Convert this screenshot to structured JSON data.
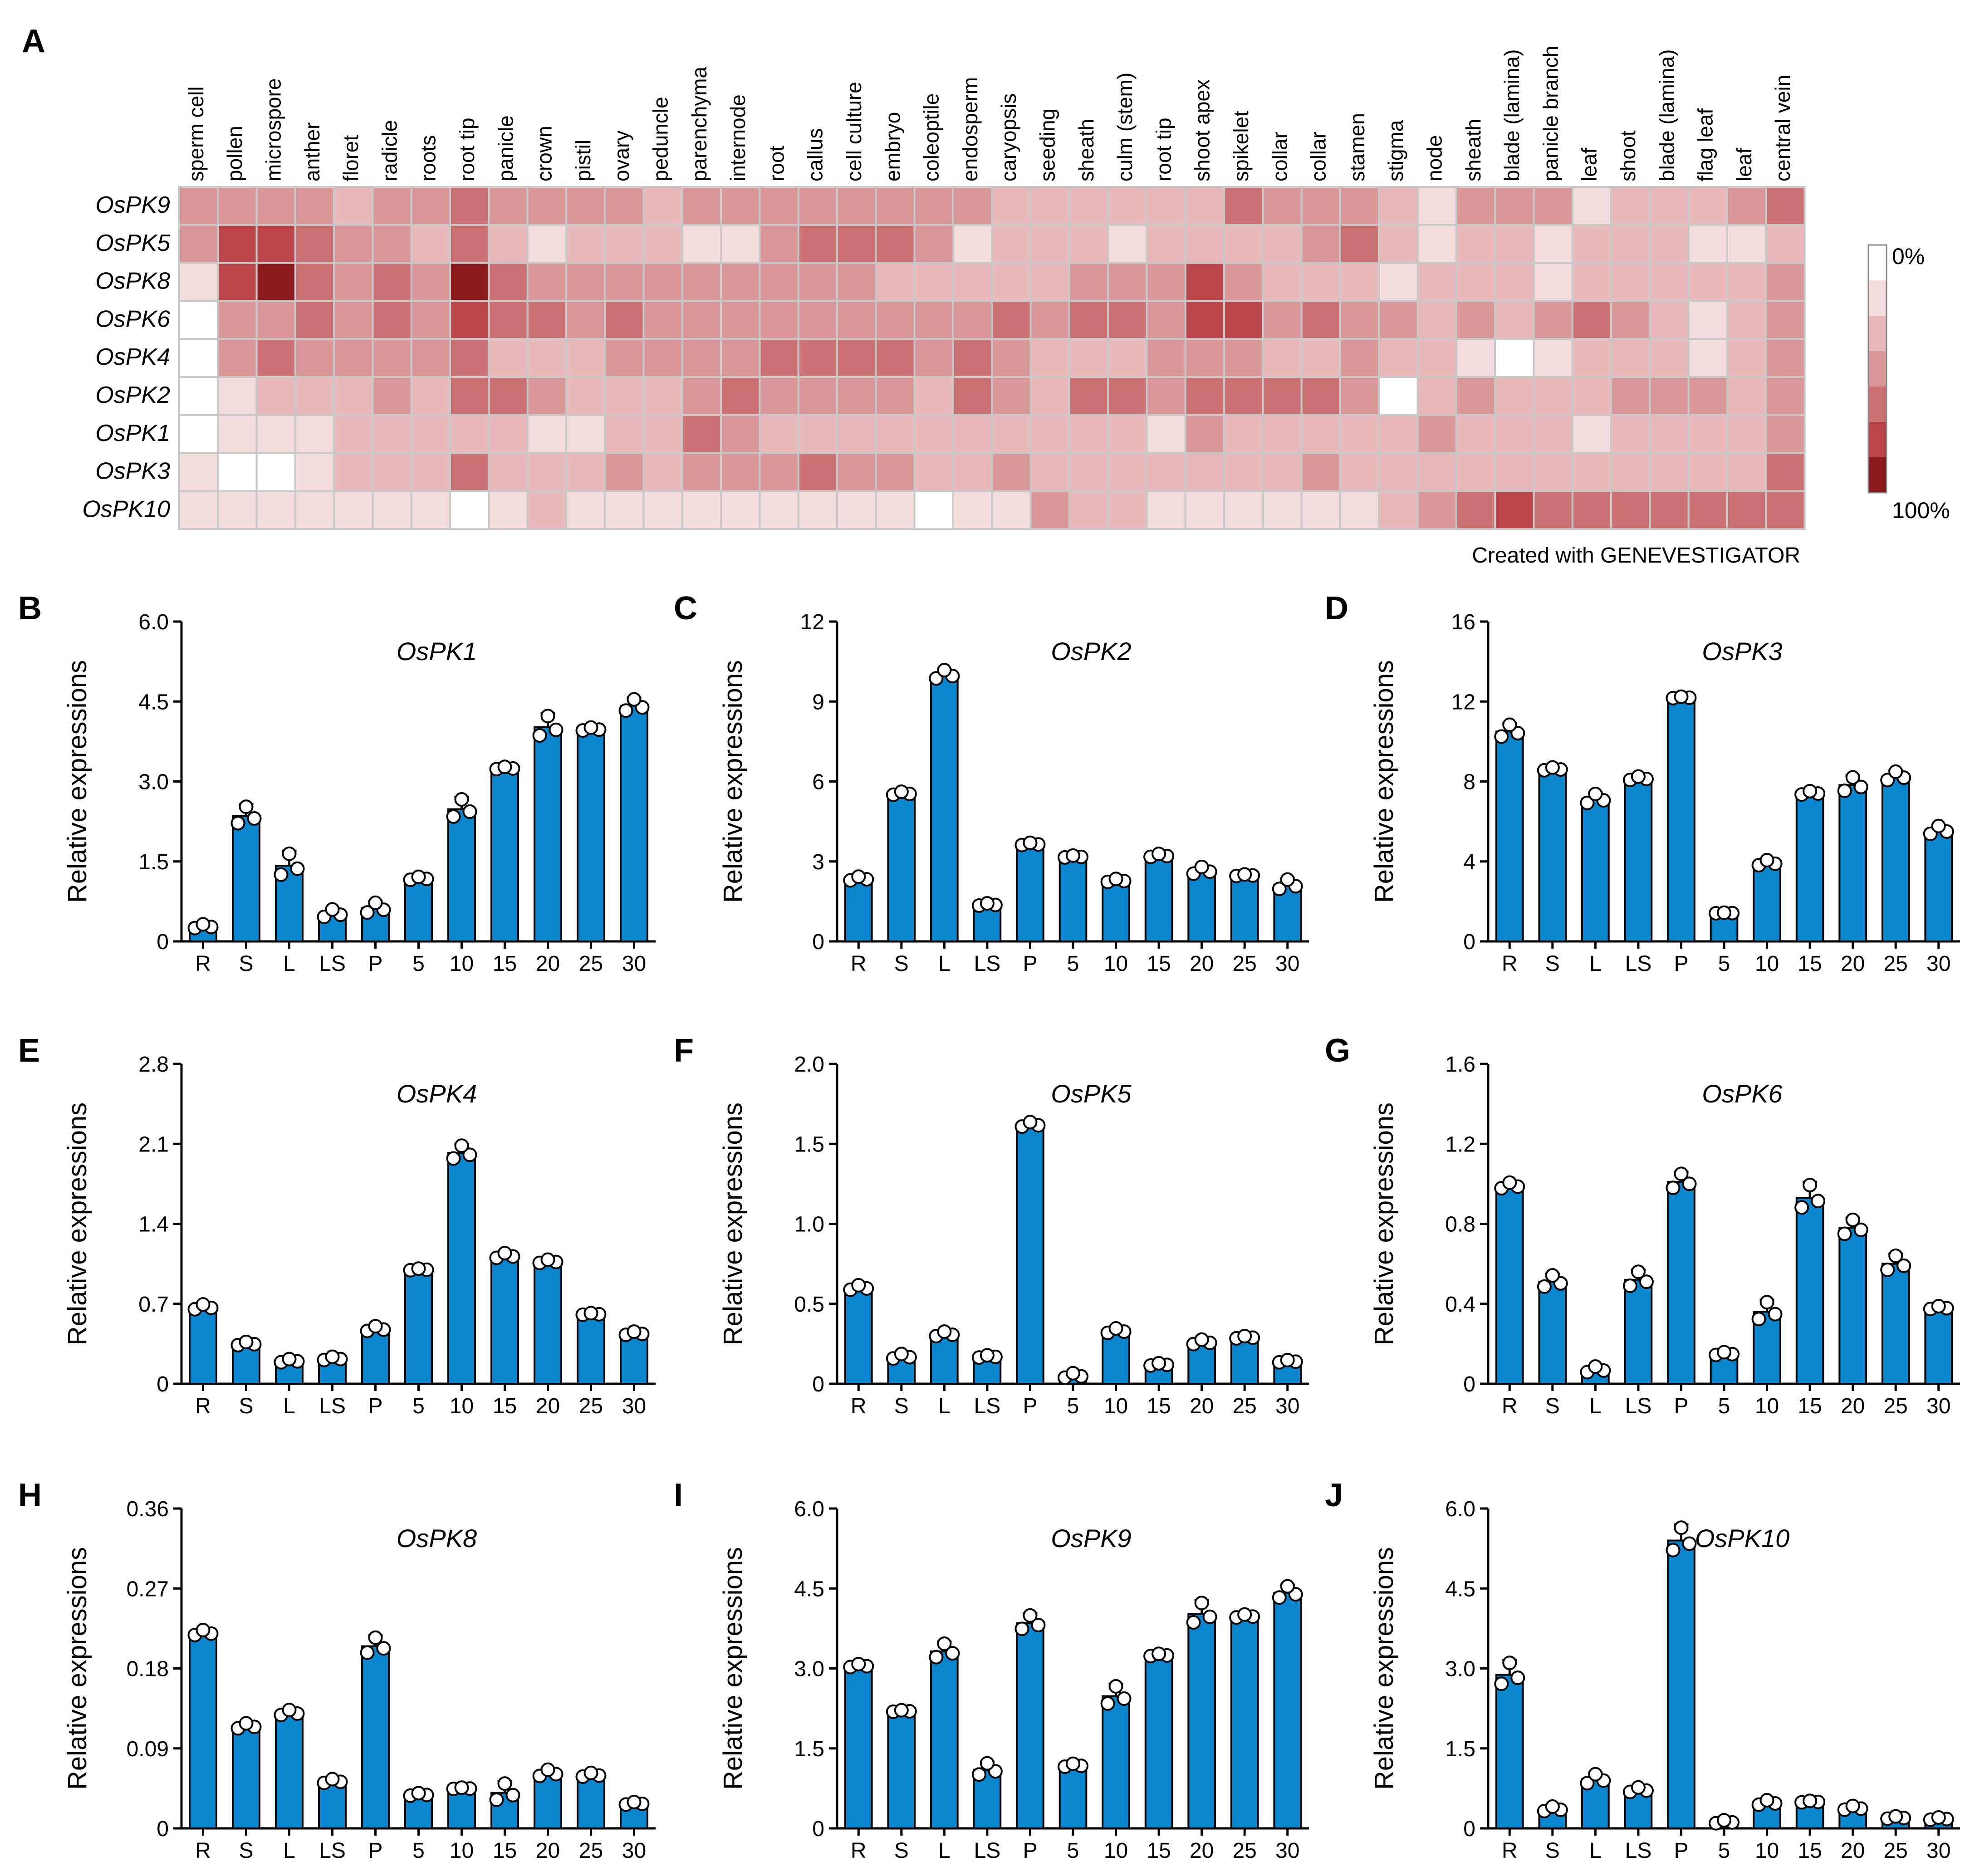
{
  "colors": {
    "bar": "#0a86cf",
    "bar_stroke": "#000000",
    "heat_low": "#ffffff",
    "heat_high": "#8b1a1f",
    "grid": "#c8c8c8"
  },
  "heatmap": {
    "panel_label": "A",
    "genes": [
      "OsPK9",
      "OsPK5",
      "OsPK8",
      "OsPK6",
      "OsPK4",
      "OsPK2",
      "OsPK1",
      "OsPK3",
      "OsPK10"
    ],
    "tissues": [
      "sperm cell",
      "pollen",
      "microspore",
      "anther",
      "floret",
      "radicle",
      "roots",
      "root tip",
      "panicle",
      "crown",
      "pistil",
      "ovary",
      "peduncle",
      "parenchyma",
      "internode",
      "root",
      "callus",
      "cell culture",
      "embryo",
      "coleoptile",
      "endosperm",
      "caryopsis",
      "seeding",
      "sheath",
      "culm (stem)",
      "root tip",
      "shoot apex",
      "spikelet",
      "collar",
      "collar",
      "stamen",
      "stigma",
      "node",
      "sheath",
      "blade (lamina)",
      "panicle branch",
      "leaf",
      "shoot",
      "blade (lamina)",
      "flag leaf",
      "leaf",
      "central vein"
    ],
    "levels": [
      [
        3,
        3,
        3,
        3,
        2,
        3,
        3,
        4,
        3,
        3,
        3,
        3,
        2,
        3,
        3,
        3,
        3,
        3,
        3,
        3,
        3,
        2,
        2,
        2,
        2,
        2,
        2,
        4,
        3,
        3,
        3,
        2,
        1,
        3,
        3,
        3,
        1,
        2,
        2,
        2,
        3,
        4
      ],
      [
        3,
        5,
        5,
        4,
        3,
        3,
        2,
        4,
        2,
        1,
        2,
        2,
        2,
        1,
        1,
        3,
        4,
        4,
        4,
        3,
        1,
        2,
        2,
        2,
        1,
        2,
        2,
        2,
        2,
        3,
        4,
        2,
        1,
        2,
        2,
        1,
        2,
        2,
        2,
        1,
        1,
        2
      ],
      [
        1,
        5,
        6,
        4,
        3,
        4,
        3,
        6,
        4,
        3,
        3,
        3,
        3,
        3,
        3,
        3,
        3,
        3,
        2,
        2,
        2,
        2,
        2,
        3,
        3,
        3,
        5,
        3,
        2,
        2,
        2,
        1,
        2,
        2,
        2,
        1,
        2,
        2,
        2,
        2,
        2,
        3
      ],
      [
        0,
        3,
        3,
        4,
        3,
        4,
        3,
        5,
        4,
        4,
        3,
        4,
        3,
        3,
        3,
        3,
        3,
        3,
        3,
        3,
        3,
        4,
        3,
        4,
        4,
        3,
        5,
        5,
        3,
        4,
        3,
        3,
        2,
        3,
        2,
        3,
        4,
        3,
        2,
        1,
        2,
        3
      ],
      [
        0,
        3,
        4,
        3,
        3,
        3,
        3,
        4,
        2,
        2,
        2,
        3,
        3,
        3,
        3,
        4,
        4,
        4,
        4,
        3,
        4,
        3,
        2,
        2,
        2,
        3,
        3,
        3,
        2,
        2,
        3,
        2,
        2,
        1,
        0,
        1,
        2,
        2,
        2,
        1,
        2,
        3
      ],
      [
        0,
        1,
        2,
        2,
        2,
        3,
        2,
        4,
        4,
        3,
        2,
        2,
        2,
        3,
        4,
        3,
        3,
        3,
        3,
        2,
        4,
        3,
        2,
        4,
        4,
        3,
        4,
        4,
        4,
        4,
        3,
        0,
        2,
        3,
        2,
        2,
        2,
        3,
        3,
        3,
        2,
        3
      ],
      [
        0,
        1,
        1,
        1,
        2,
        2,
        2,
        2,
        2,
        1,
        1,
        2,
        2,
        4,
        3,
        2,
        2,
        2,
        2,
        2,
        2,
        2,
        2,
        2,
        2,
        1,
        3,
        2,
        2,
        2,
        2,
        2,
        3,
        2,
        2,
        2,
        1,
        2,
        2,
        2,
        2,
        3
      ],
      [
        1,
        0,
        0,
        1,
        2,
        2,
        2,
        4,
        2,
        2,
        2,
        3,
        2,
        3,
        3,
        3,
        4,
        3,
        3,
        2,
        2,
        3,
        2,
        2,
        2,
        2,
        2,
        2,
        2,
        3,
        2,
        2,
        2,
        2,
        2,
        2,
        2,
        2,
        2,
        2,
        2,
        4
      ],
      [
        1,
        1,
        1,
        1,
        1,
        1,
        1,
        0,
        1,
        2,
        1,
        1,
        1,
        1,
        1,
        1,
        1,
        1,
        1,
        0,
        1,
        1,
        3,
        2,
        2,
        1,
        1,
        1,
        1,
        1,
        1,
        2,
        3,
        4,
        5,
        4,
        4,
        4,
        4,
        4,
        4,
        4
      ]
    ],
    "legend_min": "0%",
    "legend_max": "100%",
    "credit": "Created with GENEVESTIGATOR"
  },
  "chart_data": [
    {
      "panel": "B",
      "type": "bar",
      "title": "OsPK1",
      "ylabel": "Relative expressions",
      "ylim": [
        0,
        6.0
      ],
      "ytick_labels": [
        "0",
        "1.5",
        "3.0",
        "4.5",
        "6.0"
      ],
      "categories": [
        "R",
        "S",
        "L",
        "LS",
        "P",
        "5",
        "10",
        "15",
        "20",
        "25",
        "30"
      ],
      "values": [
        0.28,
        2.35,
        1.42,
        0.52,
        0.62,
        1.18,
        2.48,
        3.25,
        4.02,
        3.98,
        4.42
      ],
      "errors": [
        0.05,
        0.22,
        0.28,
        0.1,
        0.13,
        0.04,
        0.23,
        0.03,
        0.26,
        0.04,
        0.15
      ]
    },
    {
      "panel": "C",
      "type": "bar",
      "title": "OsPK2",
      "ylabel": "Relative expressions",
      "ylim": [
        0,
        12
      ],
      "ytick_labels": [
        "0",
        "3",
        "6",
        "9",
        "12"
      ],
      "categories": [
        "R",
        "S",
        "L",
        "LS",
        "P",
        "5",
        "10",
        "15",
        "20",
        "25",
        "30"
      ],
      "values": [
        2.35,
        5.55,
        10.0,
        1.38,
        3.65,
        3.18,
        2.28,
        3.22,
        2.65,
        2.48,
        2.12
      ],
      "errors": [
        0.1,
        0.08,
        0.22,
        0.06,
        0.06,
        0.05,
        0.08,
        0.08,
        0.18,
        0.04,
        0.25
      ]
    },
    {
      "panel": "D",
      "type": "bar",
      "title": "OsPK3",
      "ylabel": "Relative expressions",
      "ylim": [
        0,
        16
      ],
      "ytick_labels": [
        "0",
        "4",
        "8",
        "12",
        "16"
      ],
      "categories": [
        "R",
        "S",
        "L",
        "LS",
        "P",
        "5",
        "10",
        "15",
        "20",
        "25",
        "30"
      ],
      "values": [
        10.5,
        8.62,
        7.12,
        8.15,
        12.2,
        1.42,
        3.92,
        7.42,
        7.82,
        8.25,
        5.55
      ],
      "errors": [
        0.42,
        0.1,
        0.32,
        0.12,
        0.05,
        0.02,
        0.18,
        0.12,
        0.48,
        0.3,
        0.28
      ]
    },
    {
      "panel": "E",
      "type": "bar",
      "title": "OsPK4",
      "ylabel": "Relative expressions",
      "ylim": [
        0,
        2.8
      ],
      "ytick_labels": [
        "0",
        "0.7",
        "1.4",
        "2.1",
        "2.8"
      ],
      "categories": [
        "R",
        "S",
        "L",
        "LS",
        "P",
        "5",
        "10",
        "15",
        "20",
        "25",
        "30"
      ],
      "values": [
        0.67,
        0.35,
        0.2,
        0.22,
        0.48,
        1.0,
        2.02,
        1.12,
        1.07,
        0.61,
        0.44
      ],
      "errors": [
        0.03,
        0.02,
        0.02,
        0.02,
        0.03,
        0.01,
        0.08,
        0.03,
        0.02,
        0.01,
        0.02
      ]
    },
    {
      "panel": "F",
      "type": "bar",
      "title": "OsPK5",
      "ylabel": "Relative expressions",
      "ylim": [
        0,
        2.0
      ],
      "ytick_labels": [
        "0",
        "0.5",
        "1.0",
        "1.5",
        "2.0"
      ],
      "categories": [
        "R",
        "S",
        "L",
        "LS",
        "P",
        "5",
        "10",
        "15",
        "20",
        "25",
        "30"
      ],
      "values": [
        0.6,
        0.17,
        0.31,
        0.17,
        1.62,
        0.05,
        0.33,
        0.12,
        0.26,
        0.29,
        0.14
      ],
      "errors": [
        0.02,
        0.02,
        0.02,
        0.01,
        0.02,
        0.02,
        0.02,
        0.01,
        0.02,
        0.01,
        0.01
      ]
    },
    {
      "panel": "G",
      "type": "bar",
      "title": "OsPK6",
      "ylabel": "Relative expressions",
      "ylim": [
        0,
        1.6
      ],
      "ytick_labels": [
        "0",
        "0.4",
        "0.8",
        "1.2",
        "1.6"
      ],
      "categories": [
        "R",
        "S",
        "L",
        "LS",
        "P",
        "5",
        "10",
        "15",
        "20",
        "25",
        "30"
      ],
      "values": [
        0.99,
        0.51,
        0.07,
        0.52,
        1.01,
        0.15,
        0.36,
        0.93,
        0.78,
        0.6,
        0.38
      ],
      "errors": [
        0.02,
        0.04,
        0.02,
        0.05,
        0.05,
        0.01,
        0.06,
        0.08,
        0.05,
        0.05,
        0.01
      ]
    },
    {
      "panel": "H",
      "type": "bar",
      "title": "OsPK8",
      "ylabel": "Relative expressions",
      "ylim": [
        0,
        0.36
      ],
      "ytick_labels": [
        "0",
        "0.09",
        "0.18",
        "0.27",
        "0.36"
      ],
      "categories": [
        "R",
        "S",
        "L",
        "LS",
        "P",
        "5",
        "10",
        "15",
        "20",
        "25",
        "30"
      ],
      "values": [
        0.22,
        0.115,
        0.13,
        0.053,
        0.205,
        0.038,
        0.045,
        0.04,
        0.062,
        0.06,
        0.028
      ],
      "errors": [
        0.004,
        0.004,
        0.004,
        0.003,
        0.012,
        0.002,
        0.001,
        0.013,
        0.005,
        0.003,
        0.002
      ]
    },
    {
      "panel": "I",
      "type": "bar",
      "title": "OsPK9",
      "ylabel": "Relative expressions",
      "ylim": [
        0,
        6.0
      ],
      "ytick_labels": [
        "0",
        "1.5",
        "3.0",
        "4.5",
        "6.0"
      ],
      "categories": [
        "R",
        "S",
        "L",
        "LS",
        "P",
        "5",
        "10",
        "15",
        "20",
        "25",
        "30"
      ],
      "values": [
        3.05,
        2.2,
        3.32,
        1.1,
        3.85,
        1.18,
        2.48,
        3.25,
        4.02,
        3.98,
        4.42
      ],
      "errors": [
        0.04,
        0.02,
        0.18,
        0.15,
        0.18,
        0.04,
        0.23,
        0.03,
        0.26,
        0.04,
        0.15
      ]
    },
    {
      "panel": "J",
      "type": "bar",
      "title": "OsPK10",
      "ylabel": "Relative expressions",
      "ylim": [
        0,
        6.0
      ],
      "ytick_labels": [
        "0",
        "1.5",
        "3.0",
        "4.5",
        "6.0"
      ],
      "categories": [
        "R",
        "S",
        "L",
        "LS",
        "P",
        "5",
        "10",
        "15",
        "20",
        "25",
        "30"
      ],
      "values": [
        2.88,
        0.36,
        0.92,
        0.72,
        5.4,
        0.12,
        0.48,
        0.5,
        0.38,
        0.2,
        0.18
      ],
      "errors": [
        0.28,
        0.06,
        0.12,
        0.06,
        0.3,
        0.04,
        0.06,
        0.02,
        0.05,
        0.03,
        0.03
      ]
    }
  ]
}
